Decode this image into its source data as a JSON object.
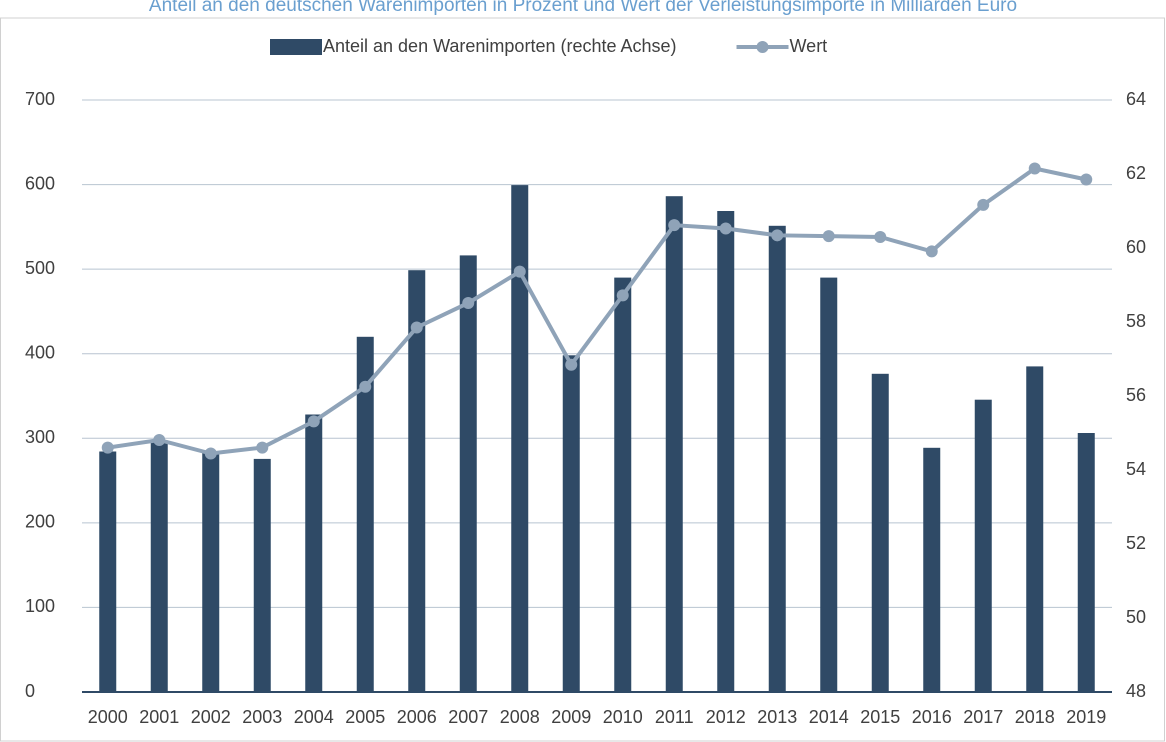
{
  "chart_data": {
    "type": "bar-line",
    "title": "Anteil an den deutschen Warenimporten in Prozent und Wert der Verleistungsimporte in Milliarden Euro",
    "categories": [
      "2000",
      "2001",
      "2002",
      "2003",
      "2004",
      "2005",
      "2006",
      "2007",
      "2008",
      "2009",
      "2010",
      "2011",
      "2012",
      "2013",
      "2014",
      "2015",
      "2016",
      "2017",
      "2018",
      "2019"
    ],
    "series": [
      {
        "name": "Anteil an den Warenimporten (rechte Achse)",
        "type": "bar",
        "axis": "y2",
        "color": "#2f4a66",
        "values": [
          54.5,
          54.8,
          54.5,
          54.3,
          55.5,
          57.6,
          59.4,
          59.8,
          61.7,
          57.1,
          59.2,
          61.4,
          61.0,
          60.6,
          59.2,
          56.6,
          54.6,
          55.9,
          56.8,
          55.0
        ]
      },
      {
        "name": "Wert",
        "type": "line",
        "color": "#8fa3b8",
        "values": [
          289,
          298,
          282,
          289,
          320,
          361,
          431,
          460,
          497,
          387,
          469,
          552,
          548,
          540,
          539,
          538,
          521,
          576,
          619,
          606
        ]
      }
    ],
    "ylim": [
      0,
      700
    ],
    "yticks": [
      0,
      100,
      200,
      300,
      400,
      500,
      600,
      700
    ],
    "y2lim": [
      48,
      64
    ],
    "y2ticks": [
      48,
      50,
      52,
      54,
      56,
      58,
      60,
      62,
      64
    ],
    "grid": true,
    "legend": "top"
  }
}
